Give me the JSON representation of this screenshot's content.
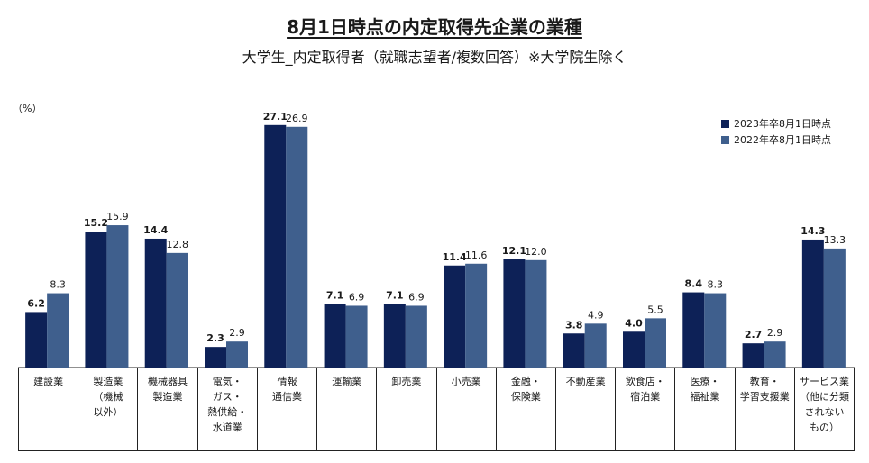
{
  "chart_data": {
    "type": "bar",
    "title": "8月1日時点の内定取得先企業の業種",
    "subtitle": "大学生_内定取得者（就職志望者/複数回答）※大学院生除く",
    "ylabel": "（%）",
    "ylim": [
      0,
      30
    ],
    "grid": false,
    "legend_position": "top-right",
    "categories": [
      "建設業",
      "製造業\n（機械\n以外）",
      "機械器具\n製造業",
      "電気・\nガス・\n熱供給・\n水道業",
      "情報\n通信業",
      "運輸業",
      "卸売業",
      "小売業",
      "金融・\n保険業",
      "不動産業",
      "飲食店・\n宿泊業",
      "医療・\n福祉業",
      "教育・\n学習支援業",
      "サービス業\n（他に分類\nされない\nもの）"
    ],
    "series": [
      {
        "name": "2023年卒8月1日時点",
        "color": "#0d2157",
        "values": [
          6.2,
          15.2,
          14.4,
          2.3,
          27.1,
          7.1,
          7.1,
          11.4,
          12.1,
          3.8,
          4.0,
          8.4,
          2.7,
          14.3
        ]
      },
      {
        "name": "2022年卒8月1日時点",
        "color": "#3f5f8d",
        "values": [
          8.3,
          15.9,
          12.8,
          2.9,
          26.9,
          6.9,
          6.9,
          11.6,
          12.0,
          4.9,
          5.5,
          8.3,
          2.9,
          13.3
        ]
      }
    ]
  }
}
